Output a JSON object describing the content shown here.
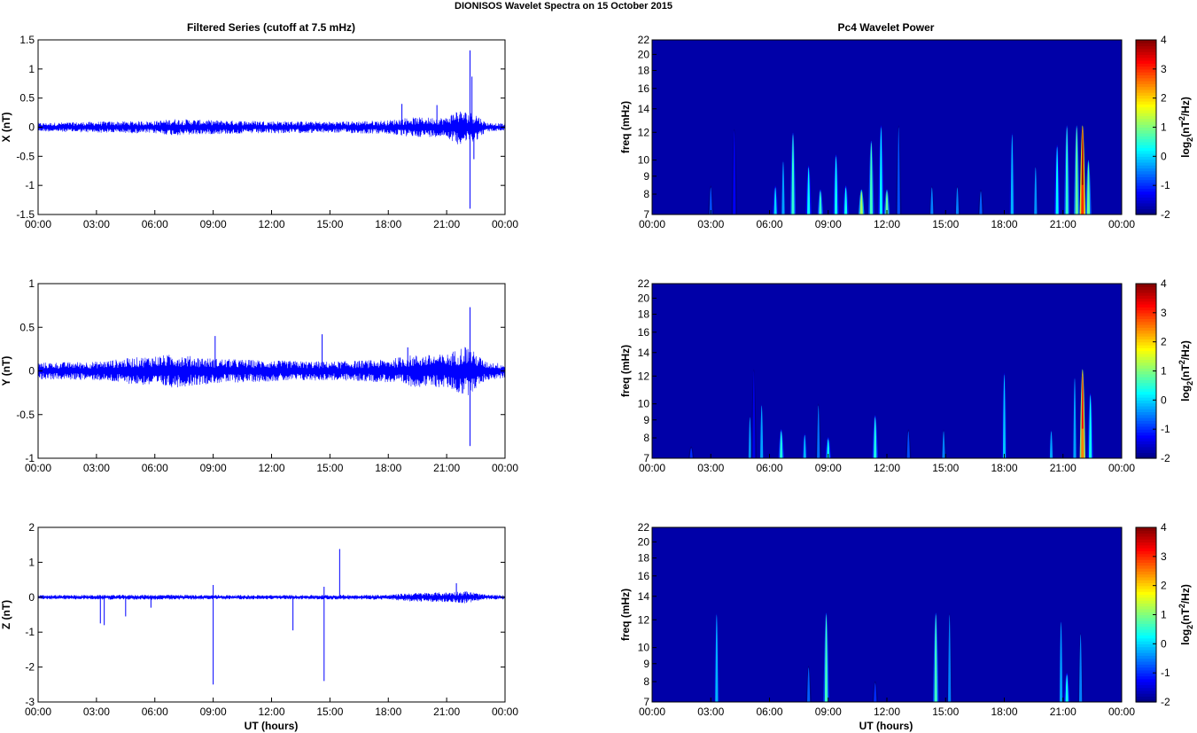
{
  "figure": {
    "title": "DIONISOS Wavelet Spectra on 15 October   2015",
    "left_column_title": "Filtered Series (cutoff at 7.5 mHz)",
    "right_column_title": "Pc4 Wavelet Power",
    "xlabel": "UT (hours)"
  },
  "chart_data": [
    {
      "type": "line",
      "panel": "series-x",
      "ylabel": "X (nT)",
      "ylim": [
        -1.5,
        1.5
      ],
      "yticks": [
        "1.5",
        "1",
        "0.5",
        "0",
        "-0.5",
        "-1",
        "-1.5"
      ],
      "ytick_values": [
        1.5,
        1,
        0.5,
        0,
        -0.5,
        -1,
        -1.5
      ],
      "xlim_hours": [
        0,
        24
      ],
      "xticks": [
        "00:00",
        "03:00",
        "06:00",
        "09:00",
        "12:00",
        "15:00",
        "18:00",
        "21:00",
        "00:00"
      ],
      "series": [
        {
          "color": "#0000ff",
          "envelope_hours": [
            0,
            3,
            6,
            7,
            9,
            12,
            15,
            18,
            19,
            21,
            21.5,
            22.5,
            23,
            24
          ],
          "envelope_nT": [
            0.06,
            0.08,
            0.09,
            0.12,
            0.1,
            0.09,
            0.08,
            0.1,
            0.14,
            0.14,
            0.25,
            0.2,
            0.07,
            0.05
          ],
          "spikes": [
            {
              "x": 22.2,
              "y": 1.32
            },
            {
              "x": 22.2,
              "y": -1.4
            },
            {
              "x": 22.3,
              "y": 0.87
            },
            {
              "x": 22.4,
              "y": -0.55
            },
            {
              "x": 18.7,
              "y": 0.4
            },
            {
              "x": 20.5,
              "y": 0.38
            }
          ]
        }
      ]
    },
    {
      "type": "line",
      "panel": "series-y",
      "ylabel": "Y (nT)",
      "ylim": [
        -1,
        1
      ],
      "yticks": [
        "1",
        "0.5",
        "0",
        "-0.5",
        "-1"
      ],
      "ytick_values": [
        1,
        0.5,
        0,
        -0.5,
        -1
      ],
      "xlim_hours": [
        0,
        24
      ],
      "xticks": [
        "00:00",
        "03:00",
        "06:00",
        "09:00",
        "12:00",
        "15:00",
        "18:00",
        "21:00",
        "00:00"
      ],
      "series": [
        {
          "color": "#0000ff",
          "envelope_hours": [
            0,
            3,
            5,
            7,
            9,
            12,
            15,
            18,
            19,
            21,
            22,
            23,
            24
          ],
          "envelope_nT": [
            0.08,
            0.09,
            0.13,
            0.16,
            0.12,
            0.1,
            0.09,
            0.11,
            0.15,
            0.16,
            0.25,
            0.09,
            0.07
          ],
          "spikes": [
            {
              "x": 22.2,
              "y": 0.73
            },
            {
              "x": 22.2,
              "y": -0.86
            },
            {
              "x": 9.1,
              "y": 0.4
            },
            {
              "x": 14.6,
              "y": 0.42
            },
            {
              "x": 19.0,
              "y": 0.27
            }
          ]
        }
      ]
    },
    {
      "type": "line",
      "panel": "series-z",
      "ylabel": "Z (nT)",
      "ylim": [
        -3,
        2
      ],
      "yticks": [
        "2",
        "1",
        "0",
        "-1",
        "-2",
        "-3"
      ],
      "ytick_values": [
        2,
        1,
        0,
        -1,
        -2,
        -3
      ],
      "xlim_hours": [
        0,
        24
      ],
      "xticks": [
        "00:00",
        "03:00",
        "06:00",
        "09:00",
        "12:00",
        "15:00",
        "18:00",
        "21:00",
        "00:00"
      ],
      "series": [
        {
          "color": "#0000ff",
          "envelope_hours": [
            0,
            6,
            12,
            18,
            19,
            21,
            22,
            23,
            24
          ],
          "envelope_nT": [
            0.05,
            0.06,
            0.05,
            0.06,
            0.1,
            0.12,
            0.15,
            0.06,
            0.05
          ],
          "spikes": [
            {
              "x": 3.2,
              "y": -0.75
            },
            {
              "x": 3.4,
              "y": -0.8
            },
            {
              "x": 4.5,
              "y": -0.55
            },
            {
              "x": 5.8,
              "y": -0.3
            },
            {
              "x": 9.0,
              "y": -2.5
            },
            {
              "x": 9.0,
              "y": 0.35
            },
            {
              "x": 13.1,
              "y": -0.95
            },
            {
              "x": 14.7,
              "y": -2.4
            },
            {
              "x": 14.7,
              "y": 0.3
            },
            {
              "x": 15.5,
              "y": 1.38
            },
            {
              "x": 21.5,
              "y": 0.4
            }
          ]
        }
      ]
    },
    {
      "type": "heatmap",
      "panel": "power-x",
      "ylabel": "freq (mHz)",
      "ylim_mHz": [
        7,
        22
      ],
      "yticks": [
        "22",
        "20",
        "18",
        "16",
        "14",
        "12",
        "10",
        "9",
        "8",
        "7"
      ],
      "ytick_values": [
        22,
        20,
        18,
        16,
        14,
        12,
        10,
        9,
        8,
        7
      ],
      "yscale": "log",
      "xlim_hours": [
        0,
        24
      ],
      "xticks": [
        "00:00",
        "03:00",
        "06:00",
        "09:00",
        "12:00",
        "15:00",
        "18:00",
        "21:00",
        "00:00"
      ],
      "colorbar": {
        "label": "log2(nT2/Hz)",
        "range": [
          -2,
          4
        ],
        "ticks": [
          "4",
          "3",
          "2",
          "1",
          "0",
          "-1",
          "-2"
        ],
        "colormap": "jet"
      },
      "bursts": [
        {
          "t": 3.0,
          "fmax": 10,
          "v": -0.8
        },
        {
          "t": 4.2,
          "fmax": 21,
          "v": -1.3
        },
        {
          "t": 6.3,
          "fmax": 10,
          "v": 0.0
        },
        {
          "t": 6.7,
          "fmax": 14,
          "v": -0.3
        },
        {
          "t": 7.2,
          "fmax": 20,
          "v": 0.5
        },
        {
          "t": 8.0,
          "fmax": 13,
          "v": 0.2
        },
        {
          "t": 8.6,
          "fmax": 9.5,
          "v": 0.5
        },
        {
          "t": 9.4,
          "fmax": 15,
          "v": 0.3
        },
        {
          "t": 9.9,
          "fmax": 10,
          "v": 0.3
        },
        {
          "t": 10.7,
          "fmax": 9.5,
          "v": 1.2
        },
        {
          "t": 11.2,
          "fmax": 18,
          "v": 0.6
        },
        {
          "t": 11.7,
          "fmax": 22,
          "v": 0.2
        },
        {
          "t": 12.0,
          "fmax": 9.5,
          "v": 0.8
        },
        {
          "t": 12.6,
          "fmax": 22,
          "v": -0.8
        },
        {
          "t": 14.3,
          "fmax": 10,
          "v": -0.5
        },
        {
          "t": 15.6,
          "fmax": 10,
          "v": -0.5
        },
        {
          "t": 16.8,
          "fmax": 9.5,
          "v": -0.7
        },
        {
          "t": 18.4,
          "fmax": 20,
          "v": -0.2
        },
        {
          "t": 19.6,
          "fmax": 13,
          "v": -0.4
        },
        {
          "t": 20.7,
          "fmax": 17,
          "v": 0.2
        },
        {
          "t": 21.2,
          "fmax": 22,
          "v": 0.5
        },
        {
          "t": 21.7,
          "fmax": 22,
          "v": 0.8
        },
        {
          "t": 22.0,
          "fmax": 22,
          "v": 3.0
        },
        {
          "t": 22.3,
          "fmax": 14,
          "v": 0.8
        }
      ]
    },
    {
      "type": "heatmap",
      "panel": "power-y",
      "ylabel": "freq (mHz)",
      "ylim_mHz": [
        7,
        22
      ],
      "yticks": [
        "22",
        "20",
        "18",
        "16",
        "14",
        "12",
        "10",
        "9",
        "8",
        "7"
      ],
      "ytick_values": [
        22,
        20,
        18,
        16,
        14,
        12,
        10,
        9,
        8,
        7
      ],
      "yscale": "log",
      "xlim_hours": [
        0,
        24
      ],
      "xticks": [
        "00:00",
        "03:00",
        "06:00",
        "09:00",
        "12:00",
        "15:00",
        "18:00",
        "21:00",
        "00:00"
      ],
      "colorbar": {
        "label": "log2(nT2/Hz)",
        "range": [
          -2,
          4
        ],
        "ticks": [
          "4",
          "3",
          "2",
          "1",
          "0",
          "-1",
          "-2"
        ],
        "colormap": "jet"
      },
      "bursts": [
        {
          "t": 2.0,
          "fmax": 8,
          "v": -1.0
        },
        {
          "t": 5.0,
          "fmax": 12,
          "v": -0.4
        },
        {
          "t": 5.2,
          "fmax": 22,
          "v": -1.4
        },
        {
          "t": 5.6,
          "fmax": 14,
          "v": -0.3
        },
        {
          "t": 6.6,
          "fmax": 10,
          "v": 0.4
        },
        {
          "t": 7.8,
          "fmax": 9.5,
          "v": -0.2
        },
        {
          "t": 8.5,
          "fmax": 14,
          "v": -0.6
        },
        {
          "t": 9.0,
          "fmax": 9,
          "v": 0.3
        },
        {
          "t": 11.4,
          "fmax": 12,
          "v": 0.4
        },
        {
          "t": 13.1,
          "fmax": 10,
          "v": -0.8
        },
        {
          "t": 14.9,
          "fmax": 10,
          "v": -0.5
        },
        {
          "t": 18.0,
          "fmax": 21,
          "v": -0.1
        },
        {
          "t": 20.4,
          "fmax": 10,
          "v": -0.3
        },
        {
          "t": 21.6,
          "fmax": 20,
          "v": -0.3
        },
        {
          "t": 22.0,
          "fmax": 22,
          "v": 2.5
        },
        {
          "t": 22.4,
          "fmax": 16,
          "v": 0.3
        }
      ]
    },
    {
      "type": "heatmap",
      "panel": "power-z",
      "ylabel": "freq (mHz)",
      "ylim_mHz": [
        7,
        22
      ],
      "yticks": [
        "22",
        "20",
        "18",
        "16",
        "14",
        "12",
        "10",
        "9",
        "8",
        "7"
      ],
      "ytick_values": [
        22,
        20,
        18,
        16,
        14,
        12,
        10,
        9,
        8,
        7
      ],
      "yscale": "log",
      "xlim_hours": [
        0,
        24
      ],
      "xticks": [
        "00:00",
        "03:00",
        "06:00",
        "09:00",
        "12:00",
        "15:00",
        "18:00",
        "21:00",
        "00:00"
      ],
      "colorbar": {
        "label": "log2(nT2/Hz)",
        "range": [
          -2,
          4
        ],
        "ticks": [
          "4",
          "3",
          "2",
          "1",
          "0",
          "-1",
          "-2"
        ],
        "colormap": "jet"
      },
      "bursts": [
        {
          "t": 3.3,
          "fmax": 22,
          "v": -0.2
        },
        {
          "t": 8.0,
          "fmax": 11,
          "v": -0.7
        },
        {
          "t": 8.9,
          "fmax": 22,
          "v": 0.6
        },
        {
          "t": 11.4,
          "fmax": 9,
          "v": -1.0
        },
        {
          "t": 14.5,
          "fmax": 22,
          "v": 0.6
        },
        {
          "t": 15.2,
          "fmax": 22,
          "v": -0.5
        },
        {
          "t": 20.9,
          "fmax": 20,
          "v": -0.3
        },
        {
          "t": 21.2,
          "fmax": 10,
          "v": 0.3
        },
        {
          "t": 21.9,
          "fmax": 17,
          "v": -0.5
        }
      ]
    }
  ]
}
